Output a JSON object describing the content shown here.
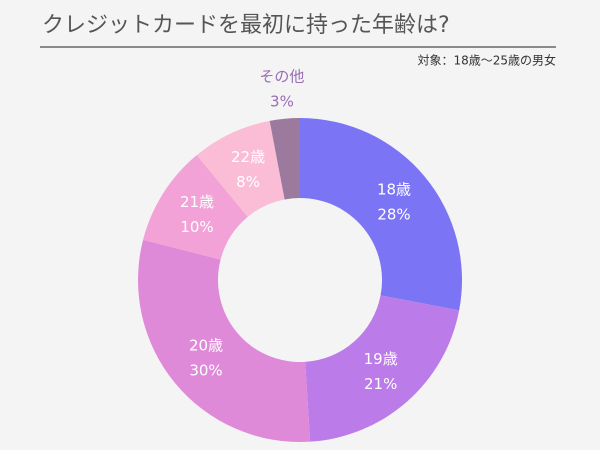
{
  "chart_data": {
    "type": "donut",
    "title": "クレジットカードを最初に持った年齢は?",
    "subtitle": "対象：18歳〜25歳の男女",
    "categories": [
      "18歳",
      "19歳",
      "20歳",
      "21歳",
      "22歳",
      "その他"
    ],
    "values": [
      28,
      21,
      30,
      10,
      8,
      3
    ],
    "value_labels": [
      "28%",
      "21%",
      "30%",
      "10%",
      "8%",
      "3%"
    ],
    "colors": [
      "#7b75f6",
      "#bb7be9",
      "#df8ad9",
      "#f2a2d7",
      "#fbbdd6",
      "#9c7a9e"
    ]
  }
}
